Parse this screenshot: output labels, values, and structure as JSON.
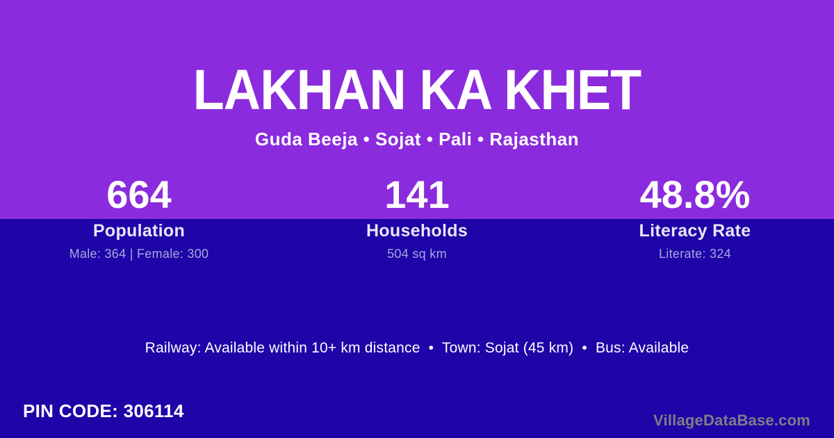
{
  "card": {
    "title": "LAKHAN KA KHET",
    "subtitle": "Guda Beeja • Sojat • Pali • Rajasthan"
  },
  "stats": [
    {
      "value": "664",
      "label": "Population",
      "detail": "Male: 364 | Female: 300"
    },
    {
      "value": "141",
      "label": "Households",
      "detail": "504 sq km"
    },
    {
      "value": "48.8%",
      "label": "Literacy Rate",
      "detail": "Literate: 324"
    }
  ],
  "amenities_line": "Railway: Available within 10+ km distance  •  Town: Sojat (45 km)  •  Bus: Available",
  "footer": {
    "pin_code": "PIN CODE: 306114",
    "watermark": "VillageDataBase.com"
  },
  "colors": {
    "top_background": "#8a2bdd",
    "bottom_background": "#1d05a8",
    "primary_text": "#ffffff",
    "label_text": "#e8e5f6",
    "detail_text": "#aaa6dc",
    "watermark_text": "#7e7e86"
  }
}
